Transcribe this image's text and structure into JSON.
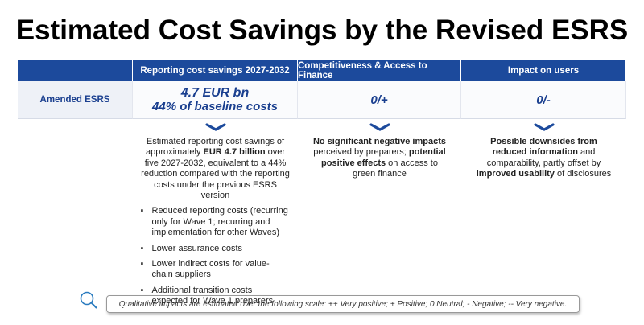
{
  "title": "Estimated Cost Savings by the Revised ESRS",
  "table": {
    "headers": [
      "Reporting cost savings 2027-2032",
      "Competitiveness & Access to Finance",
      "Impact on users"
    ],
    "row_label": "Amended ESRS",
    "cells": [
      [
        "4.7 EUR bn",
        "44% of baseline costs"
      ],
      [
        "0/+"
      ],
      [
        "0/-"
      ]
    ]
  },
  "descriptions": [
    {
      "segments": [
        {
          "text": "Estimated reporting cost savings of approximately ",
          "bold": false
        },
        {
          "text": "EUR 4.7 billion",
          "bold": true
        },
        {
          "text": " over five 2027-2032, equivalent to a 44% reduction compared with the reporting costs under the previous ESRS version",
          "bold": false
        }
      ],
      "bullets": [
        "Reduced reporting costs (recurring only for Wave 1; recurring and implementation for other Waves)",
        "Lower assurance costs",
        "Lower indirect costs for value-chain suppliers",
        "Additional transition costs expected for Wave 1 preparers"
      ]
    },
    {
      "segments": [
        {
          "text": "No significant negative impacts",
          "bold": true
        },
        {
          "text": " perceived by preparers; ",
          "bold": false
        },
        {
          "text": "potential positive effects",
          "bold": true
        },
        {
          "text": " on access to green finance",
          "bold": false
        }
      ],
      "bullets": []
    },
    {
      "segments": [
        {
          "text": "Possible downsides from reduced information",
          "bold": true
        },
        {
          "text": " and comparability, partly offset by ",
          "bold": false
        },
        {
          "text": "improved usability",
          "bold": true
        },
        {
          "text": " of disclosures",
          "bold": false
        }
      ],
      "bullets": []
    }
  ],
  "footnote": "Qualitative impacts are estimated over the following scale: ++ Very positive; + Positive; 0 Neutral; - Negative; -- Very negative."
}
